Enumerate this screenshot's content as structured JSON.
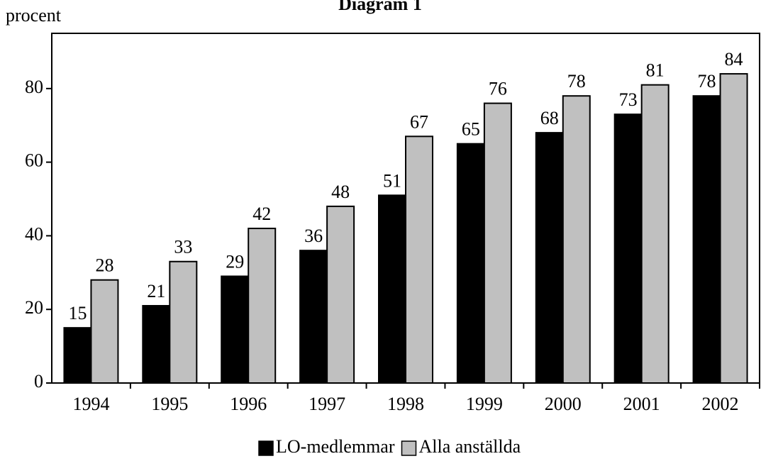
{
  "chart_data": {
    "type": "bar",
    "title": "Diagram 1",
    "y_label": "procent",
    "categories": [
      "1994",
      "1995",
      "1996",
      "1997",
      "1998",
      "1999",
      "2000",
      "2001",
      "2002"
    ],
    "series": [
      {
        "name": "LO-medlemmar",
        "color": "#000000",
        "values": [
          15,
          21,
          29,
          36,
          51,
          65,
          68,
          73,
          78
        ]
      },
      {
        "name": "Alla anställda",
        "color": "#c0c0c0",
        "values": [
          28,
          33,
          42,
          48,
          67,
          76,
          78,
          81,
          84
        ]
      }
    ],
    "ylim": [
      0,
      95
    ],
    "yticks": [
      0,
      20,
      40,
      60,
      80
    ],
    "grid": false
  }
}
